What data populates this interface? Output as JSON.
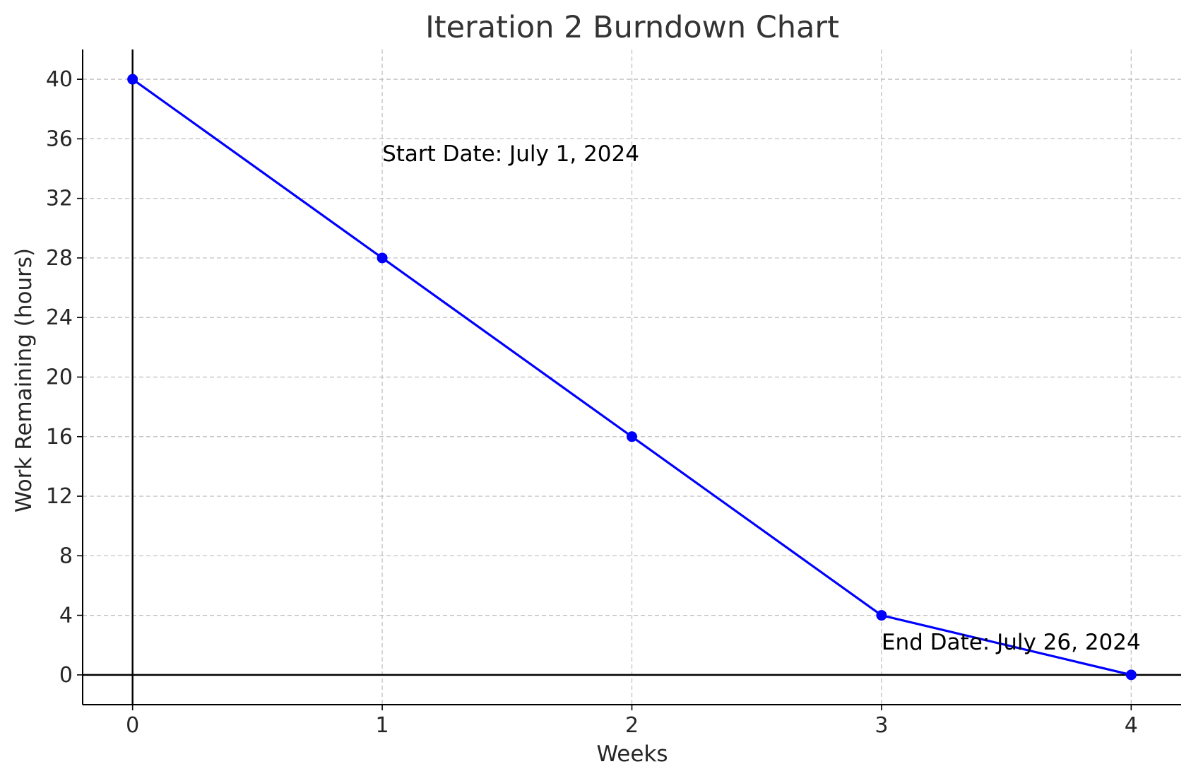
{
  "chart_data": {
    "type": "line",
    "title": "Iteration 2 Burndown Chart",
    "xlabel": "Weeks",
    "ylabel": "Work Remaining (hours)",
    "x": [
      0,
      1,
      2,
      3,
      4
    ],
    "series": [
      {
        "values": [
          40,
          28,
          16,
          4,
          0
        ],
        "color": "#0000ff",
        "marker": "circle"
      }
    ],
    "xticks": [
      "0",
      "1",
      "2",
      "3",
      "4"
    ],
    "yticks": [
      "0",
      "4",
      "8",
      "12",
      "16",
      "20",
      "24",
      "28",
      "32",
      "36",
      "40"
    ],
    "xlim": [
      -0.2,
      4.2
    ],
    "ylim": [
      -2,
      42
    ],
    "grid": true,
    "reference_lines": {
      "x": 0,
      "y": 0
    },
    "annotations": [
      {
        "text": "Start Date: July 1, 2024",
        "x": 1,
        "y": 34.5
      },
      {
        "text": "End Date: July 26, 2024",
        "x": 3,
        "y": 1.7
      }
    ]
  }
}
